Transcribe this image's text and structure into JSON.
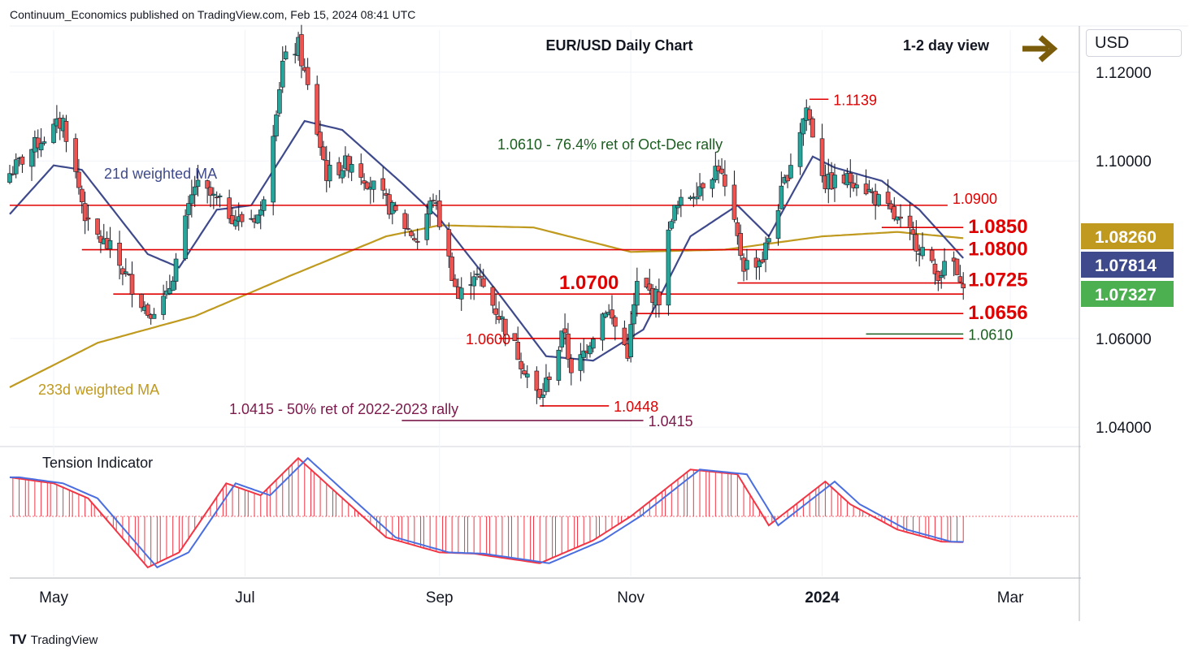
{
  "header": {
    "publisher": "Continuum_Economics published on TradingView.com, Feb 15, 2024 08:41 UTC"
  },
  "currency_selector": {
    "label": "USD"
  },
  "footer": {
    "brand": "TradingView",
    "logo": "TV"
  },
  "colors": {
    "up": "#26a69a",
    "down": "#ef5350",
    "ma21": "#3f4a8c",
    "ma233": "#bf9a1f",
    "red_line": "#e00000",
    "green_line": "#1b5e20",
    "maroon": "#7b1a4b",
    "olive": "#7a5c0a",
    "tension_red": "#f23645",
    "tension_blue": "#4a6ee0"
  },
  "chart_data": {
    "type": "candlestick",
    "title": "EUR/USD Daily Chart",
    "view_label": "1-2 day view",
    "view_arrow": "right-arrow-icon",
    "ylim": [
      1.036,
      1.1295
    ],
    "y_ticks": [
      {
        "value": 1.12,
        "label": "1.12000"
      },
      {
        "value": 1.1,
        "label": "1.10000"
      },
      {
        "value": 1.06,
        "label": "1.06000"
      },
      {
        "value": 1.04,
        "label": "1.04000"
      }
    ],
    "x_ticks": [
      {
        "label": "May",
        "date": "2023-05-01",
        "bold": false
      },
      {
        "label": "Jul",
        "date": "2023-07-01",
        "bold": false
      },
      {
        "label": "Sep",
        "date": "2023-09-01",
        "bold": false
      },
      {
        "label": "Nov",
        "date": "2023-11-01",
        "bold": false
      },
      {
        "label": "2024",
        "date": "2024-01-01",
        "bold": true
      },
      {
        "label": "Mar",
        "date": "2024-03-01",
        "bold": false
      }
    ],
    "date_range": [
      "2023-04-17",
      "2024-03-23"
    ],
    "price_badges": [
      {
        "label": "1.08260",
        "value": 1.0826,
        "color": "#bf9a1f"
      },
      {
        "label": "1.07814",
        "value": 1.07814,
        "color": "#3f4a8c"
      },
      {
        "label": "1.07327",
        "value": 1.07327,
        "color": "#4caf50"
      }
    ],
    "levels": [
      {
        "value": 1.09,
        "label": "1.0900",
        "start": "2023-04-17",
        "end": "2024-02-10",
        "color": "#e00000",
        "size": "md"
      },
      {
        "value": 1.085,
        "label": "1.0850",
        "start": "2024-01-20",
        "end": "2024-02-15",
        "color": "#e00000",
        "size": "lg"
      },
      {
        "value": 1.08,
        "label": "1.0800",
        "start": "2023-05-10",
        "end": "2024-02-15",
        "color": "#e00000",
        "size": "lg"
      },
      {
        "value": 1.0725,
        "label": "1.0725",
        "start": "2023-12-05",
        "end": "2024-02-15",
        "color": "#e00000",
        "size": "lg"
      },
      {
        "value": 1.07,
        "label": "1.0700",
        "start": "2023-05-20",
        "end": "2024-02-15",
        "color": "#e00000",
        "size": "lg"
      },
      {
        "value": 1.0656,
        "label": "1.0656",
        "start": "2023-11-01",
        "end": "2024-02-15",
        "color": "#e00000",
        "size": "lg"
      },
      {
        "value": 1.061,
        "label": "1.0610",
        "start": "2024-01-15",
        "end": "2024-02-15",
        "color": "#1b5e20",
        "size": "md"
      },
      {
        "value": 1.06,
        "label": "1.0600",
        "start": "2023-09-20",
        "end": "2024-02-15",
        "color": "#e00000",
        "size": "md"
      },
      {
        "value": 1.0448,
        "label": "1.0448",
        "start": "2023-10-03",
        "end": "2023-10-25",
        "color": "#e00000",
        "size": "md"
      },
      {
        "value": 1.0415,
        "label": "1.0415",
        "start": "2023-08-20",
        "end": "2023-11-05",
        "color": "#7b1a4b",
        "size": "md"
      },
      {
        "value": 1.1139,
        "label": "1.1139",
        "start": "2023-12-28",
        "end": "2024-01-03",
        "color": "#e00000",
        "size": "md"
      }
    ],
    "annotations": [
      {
        "text": "21d weighted MA",
        "color": "#3f4a8c"
      },
      {
        "text": "233d weighted MA",
        "color": "#bf9a1f"
      },
      {
        "text": "1.0610 - 76.4% ret of Oct-Dec rally",
        "color": "#1b5e20"
      },
      {
        "text": "1.0415 - 50% ret of 2022-2023 rally",
        "color": "#7b1a4b"
      }
    ],
    "price_anchors": [
      [
        "2023-04-17",
        1.0972
      ],
      [
        "2023-04-26",
        1.1042
      ],
      [
        "2023-05-04",
        1.109
      ],
      [
        "2023-05-12",
        1.085
      ],
      [
        "2023-05-19",
        1.0801
      ],
      [
        "2023-05-31",
        1.066
      ],
      [
        "2023-06-06",
        1.069
      ],
      [
        "2023-06-15",
        1.0945
      ],
      [
        "2023-06-20",
        1.092
      ],
      [
        "2023-06-29",
        1.0865
      ],
      [
        "2023-07-06",
        1.088
      ],
      [
        "2023-07-13",
        1.122
      ],
      [
        "2023-07-18",
        1.126
      ],
      [
        "2023-07-27",
        1.097
      ],
      [
        "2023-08-04",
        1.1
      ],
      [
        "2023-08-11",
        1.094
      ],
      [
        "2023-08-25",
        1.082
      ],
      [
        "2023-08-30",
        1.092
      ],
      [
        "2023-09-07",
        1.069
      ],
      [
        "2023-09-12",
        1.075
      ],
      [
        "2023-09-21",
        1.064
      ],
      [
        "2023-10-03",
        1.046
      ],
      [
        "2023-10-11",
        1.062
      ],
      [
        "2023-10-13",
        1.051
      ],
      [
        "2023-10-24",
        1.067
      ],
      [
        "2023-10-31",
        1.057
      ],
      [
        "2023-11-03",
        1.072
      ],
      [
        "2023-11-10",
        1.069
      ],
      [
        "2023-11-14",
        1.088
      ],
      [
        "2023-11-29",
        1.099
      ],
      [
        "2023-12-07",
        1.0765
      ],
      [
        "2023-12-13",
        1.078
      ],
      [
        "2023-12-20",
        1.095
      ],
      [
        "2023-12-27",
        1.112
      ],
      [
        "2024-01-02",
        1.095
      ],
      [
        "2024-01-12",
        1.096
      ],
      [
        "2024-01-23",
        1.088
      ],
      [
        "2024-02-02",
        1.08
      ],
      [
        "2024-02-06",
        1.0745
      ],
      [
        "2024-02-12",
        1.077
      ],
      [
        "2024-02-14",
        1.071
      ],
      [
        "2024-02-15",
        1.0733
      ]
    ],
    "ma21_anchors": [
      [
        "2023-04-17",
        1.088
      ],
      [
        "2023-05-01",
        1.099
      ],
      [
        "2023-05-10",
        1.098
      ],
      [
        "2023-05-31",
        1.079
      ],
      [
        "2023-06-10",
        1.076
      ],
      [
        "2023-06-22",
        1.089
      ],
      [
        "2023-07-03",
        1.09
      ],
      [
        "2023-07-20",
        1.109
      ],
      [
        "2023-08-01",
        1.107
      ],
      [
        "2023-08-20",
        1.095
      ],
      [
        "2023-09-01",
        1.087
      ],
      [
        "2023-09-20",
        1.07
      ],
      [
        "2023-10-05",
        1.056
      ],
      [
        "2023-10-20",
        1.055
      ],
      [
        "2023-11-05",
        1.062
      ],
      [
        "2023-11-20",
        1.083
      ],
      [
        "2023-12-05",
        1.09
      ],
      [
        "2023-12-15",
        1.083
      ],
      [
        "2023-12-29",
        1.101
      ],
      [
        "2024-01-05",
        1.0985
      ],
      [
        "2024-01-20",
        1.0955
      ],
      [
        "2024-02-01",
        1.089
      ],
      [
        "2024-02-15",
        1.0781
      ]
    ],
    "ma233_anchors": [
      [
        "2023-04-17",
        1.049
      ],
      [
        "2023-05-15",
        1.059
      ],
      [
        "2023-06-15",
        1.065
      ],
      [
        "2023-07-15",
        1.074
      ],
      [
        "2023-08-15",
        1.083
      ],
      [
        "2023-09-01",
        1.0855
      ],
      [
        "2023-10-01",
        1.085
      ],
      [
        "2023-11-01",
        1.0795
      ],
      [
        "2023-12-01",
        1.08
      ],
      [
        "2024-01-01",
        1.083
      ],
      [
        "2024-01-25",
        1.084
      ],
      [
        "2024-02-15",
        1.0826
      ]
    ],
    "tension": {
      "title": "Tension Indicator",
      "ylim": [
        -1.0,
        1.0
      ],
      "anchors": [
        [
          "2023-04-17",
          0.65
        ],
        [
          "2023-05-01",
          0.55
        ],
        [
          "2023-05-12",
          0.3
        ],
        [
          "2023-05-31",
          -0.85
        ],
        [
          "2023-06-10",
          -0.6
        ],
        [
          "2023-06-25",
          0.55
        ],
        [
          "2023-07-06",
          0.35
        ],
        [
          "2023-07-18",
          0.97
        ],
        [
          "2023-07-30",
          0.4
        ],
        [
          "2023-08-15",
          -0.35
        ],
        [
          "2023-09-01",
          -0.6
        ],
        [
          "2023-09-12",
          -0.62
        ],
        [
          "2023-10-03",
          -0.78
        ],
        [
          "2023-10-20",
          -0.4
        ],
        [
          "2023-11-01",
          0.0
        ],
        [
          "2023-11-20",
          0.78
        ],
        [
          "2023-12-05",
          0.7
        ],
        [
          "2023-12-15",
          -0.15
        ],
        [
          "2024-01-02",
          0.58
        ],
        [
          "2024-01-10",
          0.2
        ],
        [
          "2024-01-25",
          -0.22
        ],
        [
          "2024-02-08",
          -0.42
        ],
        [
          "2024-02-15",
          -0.43
        ]
      ]
    }
  }
}
